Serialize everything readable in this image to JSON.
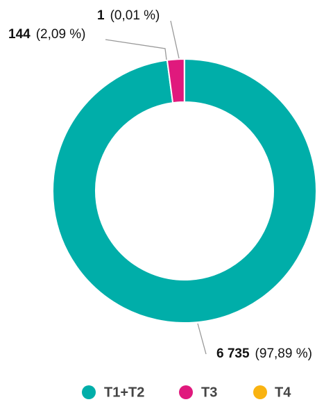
{
  "chart_data": {
    "type": "donut",
    "categories": [
      "T1+T2",
      "T3",
      "T4"
    ],
    "values": [
      6735,
      144,
      1
    ],
    "value_labels": [
      "6 735",
      "144",
      "1"
    ],
    "percent_labels": [
      "(97,89 %)",
      "(2,09 %)",
      "(0,01 %)"
    ],
    "colors": [
      "#00aea9",
      "#e0197d",
      "#f9b311"
    ],
    "legend": "bottom"
  }
}
